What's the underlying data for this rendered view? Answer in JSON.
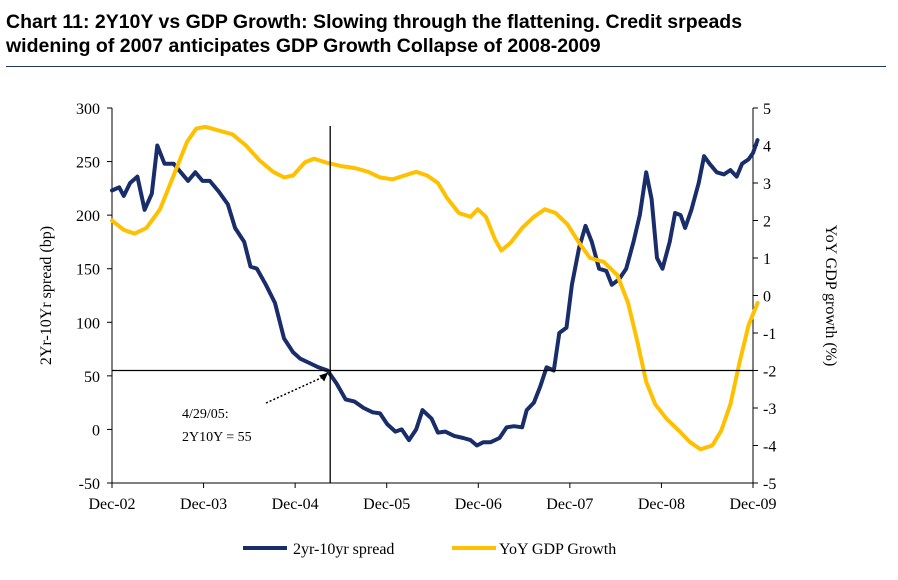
{
  "title_line1": "Chart 11: 2Y10Y vs GDP Growth: Slowing through the flattening. Credit srpeads",
  "title_line2": "widening of 2007 anticipates GDP Growth Collapse of 2008-2009",
  "chart_data": {
    "type": "line",
    "x_categories": [
      "Dec-02",
      "Dec-03",
      "Dec-04",
      "Dec-05",
      "Dec-06",
      "Dec-07",
      "Dec-08",
      "Dec-09"
    ],
    "y_left": {
      "label": "2Yr-10Yr spread (bp)",
      "range": [
        -50,
        300
      ],
      "ticks": [
        -50,
        0,
        50,
        100,
        150,
        200,
        250,
        300
      ]
    },
    "y_right": {
      "label": "YoY GDP growth (%)",
      "range": [
        -5,
        5
      ],
      "ticks": [
        -5,
        -4,
        -3,
        -2,
        -1,
        0,
        1,
        2,
        3,
        4,
        5
      ]
    },
    "annotation": {
      "line1": "4/29/05:",
      "line2": "2Y10Y = 55",
      "date": 2005.33,
      "value": 55
    },
    "series": [
      {
        "name": "2yr-10yr spread",
        "color": "#1a2d6b",
        "axis": "left",
        "points": [
          [
            2002.92,
            223
          ],
          [
            2003.0,
            226
          ],
          [
            2003.05,
            218
          ],
          [
            2003.12,
            230
          ],
          [
            2003.2,
            236
          ],
          [
            2003.28,
            205
          ],
          [
            2003.36,
            220
          ],
          [
            2003.42,
            265
          ],
          [
            2003.5,
            248
          ],
          [
            2003.6,
            248
          ],
          [
            2003.68,
            240
          ],
          [
            2003.76,
            232
          ],
          [
            2003.84,
            240
          ],
          [
            2003.92,
            232
          ],
          [
            2004.0,
            232
          ],
          [
            2004.1,
            222
          ],
          [
            2004.2,
            210
          ],
          [
            2004.28,
            188
          ],
          [
            2004.38,
            175
          ],
          [
            2004.45,
            152
          ],
          [
            2004.52,
            150
          ],
          [
            2004.62,
            135
          ],
          [
            2004.72,
            118
          ],
          [
            2004.82,
            85
          ],
          [
            2004.92,
            72
          ],
          [
            2005.0,
            66
          ],
          [
            2005.1,
            62
          ],
          [
            2005.2,
            58
          ],
          [
            2005.3,
            55
          ],
          [
            2005.4,
            43
          ],
          [
            2005.5,
            28
          ],
          [
            2005.6,
            26
          ],
          [
            2005.7,
            20
          ],
          [
            2005.8,
            16
          ],
          [
            2005.88,
            15
          ],
          [
            2005.96,
            5
          ],
          [
            2006.05,
            -2
          ],
          [
            2006.12,
            0
          ],
          [
            2006.2,
            -10
          ],
          [
            2006.28,
            0
          ],
          [
            2006.35,
            18
          ],
          [
            2006.45,
            10
          ],
          [
            2006.52,
            -3
          ],
          [
            2006.6,
            -2
          ],
          [
            2006.7,
            -6
          ],
          [
            2006.8,
            -8
          ],
          [
            2006.88,
            -10
          ],
          [
            2006.95,
            -15
          ],
          [
            2007.02,
            -12
          ],
          [
            2007.1,
            -12
          ],
          [
            2007.2,
            -8
          ],
          [
            2007.28,
            2
          ],
          [
            2007.36,
            3
          ],
          [
            2007.45,
            2
          ],
          [
            2007.5,
            18
          ],
          [
            2007.58,
            25
          ],
          [
            2007.65,
            40
          ],
          [
            2007.72,
            58
          ],
          [
            2007.8,
            55
          ],
          [
            2007.86,
            90
          ],
          [
            2007.94,
            95
          ],
          [
            2008.0,
            135
          ],
          [
            2008.08,
            170
          ],
          [
            2008.15,
            190
          ],
          [
            2008.22,
            175
          ],
          [
            2008.3,
            150
          ],
          [
            2008.38,
            148
          ],
          [
            2008.44,
            135
          ],
          [
            2008.52,
            140
          ],
          [
            2008.6,
            150
          ],
          [
            2008.68,
            175
          ],
          [
            2008.75,
            200
          ],
          [
            2008.82,
            240
          ],
          [
            2008.88,
            215
          ],
          [
            2008.94,
            160
          ],
          [
            2009.0,
            150
          ],
          [
            2009.08,
            175
          ],
          [
            2009.14,
            202
          ],
          [
            2009.2,
            200
          ],
          [
            2009.25,
            188
          ],
          [
            2009.32,
            205
          ],
          [
            2009.4,
            230
          ],
          [
            2009.46,
            255
          ],
          [
            2009.52,
            248
          ],
          [
            2009.6,
            240
          ],
          [
            2009.68,
            238
          ],
          [
            2009.75,
            242
          ],
          [
            2009.82,
            236
          ],
          [
            2009.88,
            248
          ],
          [
            2009.95,
            252
          ],
          [
            2010.0,
            258
          ],
          [
            2010.05,
            270
          ]
        ]
      },
      {
        "name": "YoY GDP Growth",
        "color": "#ffc000",
        "axis": "right",
        "points": [
          [
            2002.92,
            2.0
          ],
          [
            2003.05,
            1.75
          ],
          [
            2003.17,
            1.65
          ],
          [
            2003.3,
            1.8
          ],
          [
            2003.45,
            2.3
          ],
          [
            2003.6,
            3.2
          ],
          [
            2003.75,
            4.1
          ],
          [
            2003.85,
            4.45
          ],
          [
            2003.95,
            4.5
          ],
          [
            2004.1,
            4.4
          ],
          [
            2004.25,
            4.3
          ],
          [
            2004.4,
            4.0
          ],
          [
            2004.55,
            3.6
          ],
          [
            2004.7,
            3.3
          ],
          [
            2004.82,
            3.15
          ],
          [
            2004.92,
            3.2
          ],
          [
            2005.05,
            3.55
          ],
          [
            2005.15,
            3.65
          ],
          [
            2005.28,
            3.55
          ],
          [
            2005.45,
            3.45
          ],
          [
            2005.6,
            3.4
          ],
          [
            2005.75,
            3.3
          ],
          [
            2005.88,
            3.15
          ],
          [
            2006.02,
            3.1
          ],
          [
            2006.15,
            3.2
          ],
          [
            2006.28,
            3.3
          ],
          [
            2006.4,
            3.2
          ],
          [
            2006.52,
            3.0
          ],
          [
            2006.62,
            2.6
          ],
          [
            2006.75,
            2.2
          ],
          [
            2006.88,
            2.1
          ],
          [
            2006.96,
            2.3
          ],
          [
            2007.05,
            2.1
          ],
          [
            2007.15,
            1.5
          ],
          [
            2007.22,
            1.2
          ],
          [
            2007.32,
            1.4
          ],
          [
            2007.45,
            1.8
          ],
          [
            2007.58,
            2.1
          ],
          [
            2007.7,
            2.3
          ],
          [
            2007.82,
            2.2
          ],
          [
            2007.95,
            1.9
          ],
          [
            2008.08,
            1.4
          ],
          [
            2008.2,
            1.0
          ],
          [
            2008.35,
            0.9
          ],
          [
            2008.5,
            0.55
          ],
          [
            2008.62,
            -0.2
          ],
          [
            2008.72,
            -1.2
          ],
          [
            2008.82,
            -2.3
          ],
          [
            2008.92,
            -2.9
          ],
          [
            2009.05,
            -3.3
          ],
          [
            2009.18,
            -3.6
          ],
          [
            2009.3,
            -3.9
          ],
          [
            2009.42,
            -4.1
          ],
          [
            2009.55,
            -4.0
          ],
          [
            2009.65,
            -3.6
          ],
          [
            2009.75,
            -2.9
          ],
          [
            2009.85,
            -1.8
          ],
          [
            2009.95,
            -0.8
          ],
          [
            2010.05,
            -0.2
          ]
        ]
      }
    ]
  }
}
